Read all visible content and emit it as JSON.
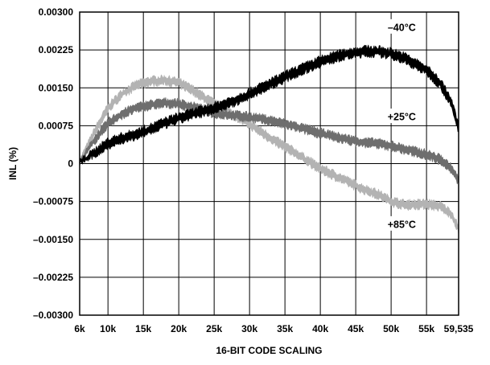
{
  "chart_data": {
    "type": "line",
    "title": "",
    "xlabel": "16-BIT CODE SCALING",
    "ylabel": "INL (%)",
    "xlim": [
      6000,
      59535
    ],
    "ylim": [
      -0.003,
      0.003
    ],
    "grid": true,
    "x_ticks": [
      6000,
      10000,
      15000,
      20000,
      25000,
      30000,
      35000,
      40000,
      45000,
      50000,
      55000,
      59535
    ],
    "x_tick_labels": [
      "6k",
      "10k",
      "15k",
      "20k",
      "25k",
      "30k",
      "35k",
      "40k",
      "45k",
      "50k",
      "55k",
      "59,535"
    ],
    "y_ticks": [
      0.003,
      0.00225,
      0.0015,
      0.00075,
      0,
      -0.00075,
      -0.0015,
      -0.00225,
      -0.003
    ],
    "y_tick_labels": [
      "0.00300",
      "0.00225",
      "0.00150",
      "0.00075",
      "0",
      "–0.00075",
      "–0.00150",
      "–0.00225",
      "–0.00300"
    ],
    "series": [
      {
        "name": "+85°C",
        "color": "#b3b3b3",
        "band_width": 0.00014,
        "x": [
          6000,
          8000,
          10000,
          12000,
          14000,
          16000,
          18000,
          20000,
          22000,
          25000,
          28000,
          30000,
          33000,
          36000,
          40000,
          43000,
          46000,
          48000,
          50000,
          52000,
          55000,
          57000,
          58500,
          59535
        ],
        "y": [
          5e-05,
          0.0006,
          0.0011,
          0.00138,
          0.00155,
          0.00163,
          0.00165,
          0.0016,
          0.00145,
          0.00118,
          0.00095,
          0.00078,
          0.0005,
          0.00025,
          -0.0001,
          -0.0003,
          -0.0005,
          -0.0006,
          -0.00075,
          -0.00082,
          -0.0008,
          -0.00085,
          -0.001,
          -0.0013
        ]
      },
      {
        "name": "+25°C",
        "color": "#6e6e6e",
        "band_width": 0.00014,
        "x": [
          6000,
          8000,
          10000,
          12000,
          14000,
          16000,
          18000,
          20000,
          22000,
          25000,
          28000,
          30000,
          33000,
          36000,
          40000,
          43000,
          46000,
          48000,
          50000,
          52000,
          55000,
          57000,
          58500,
          59535
        ],
        "y": [
          2e-05,
          0.00045,
          0.0008,
          0.00098,
          0.0011,
          0.00116,
          0.0012,
          0.00118,
          0.00112,
          0.001,
          0.00095,
          0.00092,
          0.00085,
          0.00075,
          0.0006,
          0.0005,
          0.00042,
          0.0004,
          0.00035,
          0.00028,
          0.00018,
          8e-05,
          -0.0001,
          -0.00035
        ]
      },
      {
        "name": "–40°C",
        "color": "#000000",
        "band_width": 0.00016,
        "x": [
          6000,
          8000,
          10000,
          12000,
          14000,
          16000,
          18000,
          20000,
          22000,
          25000,
          28000,
          30000,
          33000,
          36000,
          40000,
          43000,
          46000,
          48000,
          50000,
          52000,
          55000,
          57000,
          58500,
          59535
        ],
        "y": [
          3e-05,
          0.0002,
          0.0004,
          0.0005,
          0.00058,
          0.00068,
          0.0008,
          0.0009,
          0.00098,
          0.0011,
          0.00125,
          0.00138,
          0.00158,
          0.00178,
          0.00202,
          0.00215,
          0.00222,
          0.00222,
          0.00218,
          0.00208,
          0.00185,
          0.00158,
          0.0012,
          0.0007
        ]
      }
    ],
    "annotations": [
      {
        "text": "–40°C",
        "x": 51500,
        "y": 0.0027
      },
      {
        "text": "+25°C",
        "x": 51500,
        "y": 0.00093
      },
      {
        "text": "+85°C",
        "x": 51500,
        "y": -0.0012
      }
    ]
  }
}
